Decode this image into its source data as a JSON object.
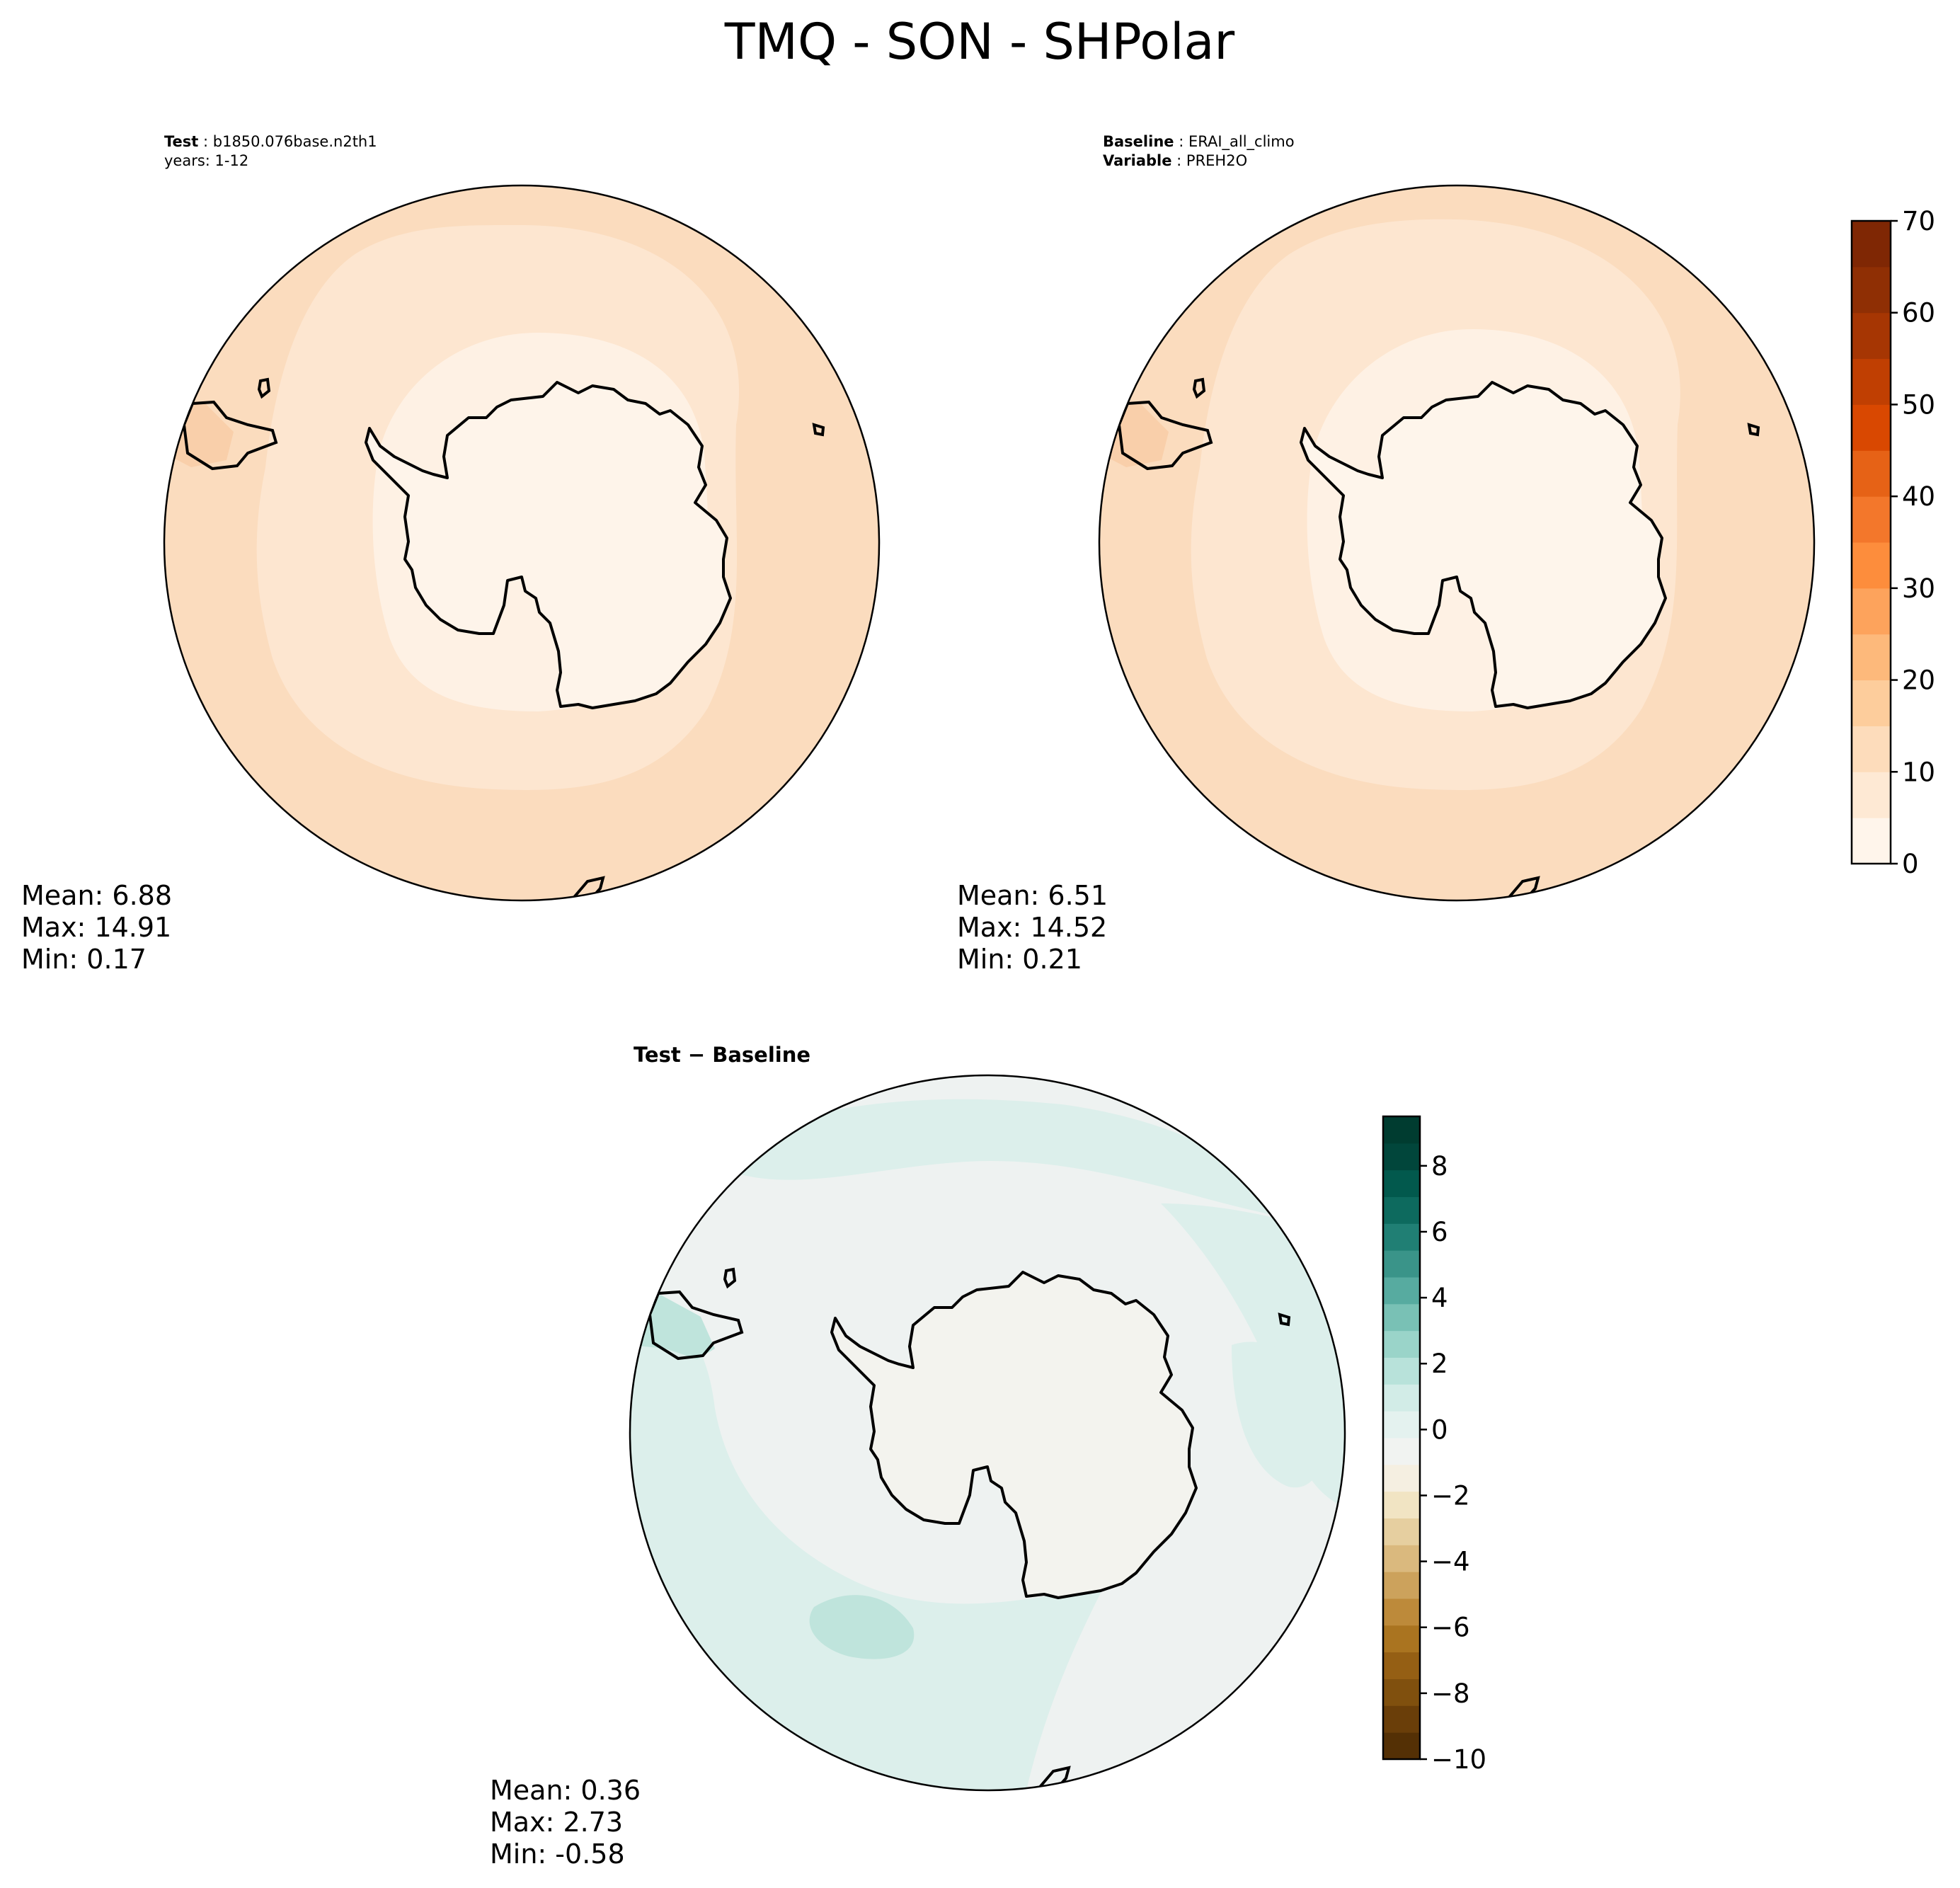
{
  "title": "TMQ - SON - SHPolar",
  "panels": [
    {
      "id": "test",
      "header": [
        {
          "bold": "Test",
          "rest": " : b1850.076base.n2th1"
        },
        {
          "bold": "",
          "rest": "years: 1-12"
        }
      ],
      "stats": {
        "mean": "Mean:  6.88",
        "max": "Max: 14.91",
        "min": "Min:  0.17"
      }
    },
    {
      "id": "baseline",
      "header": [
        {
          "bold": "Baseline",
          "rest": " : ERAI_all_climo"
        },
        {
          "bold": "Variable",
          "rest": " : PREH2O"
        }
      ],
      "stats": {
        "mean": "Mean:  6.51",
        "max": "Max: 14.52",
        "min": "Min:  0.21"
      }
    },
    {
      "id": "diff",
      "header": [
        {
          "bold": "Test − Baseline",
          "rest": ""
        }
      ],
      "stats": {
        "mean": "Mean:  0.36",
        "max": "Max:  2.73",
        "min": "Min: -0.58"
      }
    }
  ],
  "colorbars": [
    {
      "id": "main",
      "ticks": [
        "0",
        "10",
        "20",
        "30",
        "40",
        "50",
        "60",
        "70"
      ],
      "range": [
        0,
        70
      ],
      "colors": [
        "#fff5eb",
        "#fee9d4",
        "#fddcbb",
        "#fdcd9c",
        "#fdb97b",
        "#fda35c",
        "#fd8d3c",
        "#f3772b",
        "#e66216",
        "#d94801",
        "#c03f02",
        "#a63603",
        "#8f2f04",
        "#7f2704"
      ]
    },
    {
      "id": "diff",
      "ticks": [
        "−10",
        "−8",
        "−6",
        "−4",
        "−2",
        "0",
        "2",
        "4",
        "6",
        "8"
      ],
      "range": [
        -10,
        9.5
      ],
      "colors": [
        "#543005",
        "#6a3e09",
        "#80500e",
        "#955f14",
        "#aa7420",
        "#bd8a3a",
        "#cca25c",
        "#dab97e",
        "#e6cfa0",
        "#f1e4c3",
        "#f5efe1",
        "#f1f3f1",
        "#e4f2ef",
        "#d2ece7",
        "#b8e2da",
        "#9ad4c9",
        "#79c1b5",
        "#57aba0",
        "#3a9489",
        "#207f74",
        "#0d6a5e",
        "#02594d",
        "#01463b",
        "#003c30"
      ]
    }
  ],
  "map_fields": {
    "test": {
      "bands": [
        "#fbdcbe",
        "#fde6d0",
        "#fef1e4"
      ],
      "land": "#fef4ea",
      "peninsula_tip": "#f9cfaa"
    },
    "baseline": {
      "bands": [
        "#fbdcbe",
        "#fde6d0",
        "#fef1e4"
      ],
      "land": "#fef5eb",
      "peninsula_tip": "#f9cfaa"
    },
    "diff": {
      "ocean": "#eef2f1",
      "patch": "#dcefeb",
      "land": "#f3f3ee",
      "strong": "#bfe4dc"
    }
  }
}
